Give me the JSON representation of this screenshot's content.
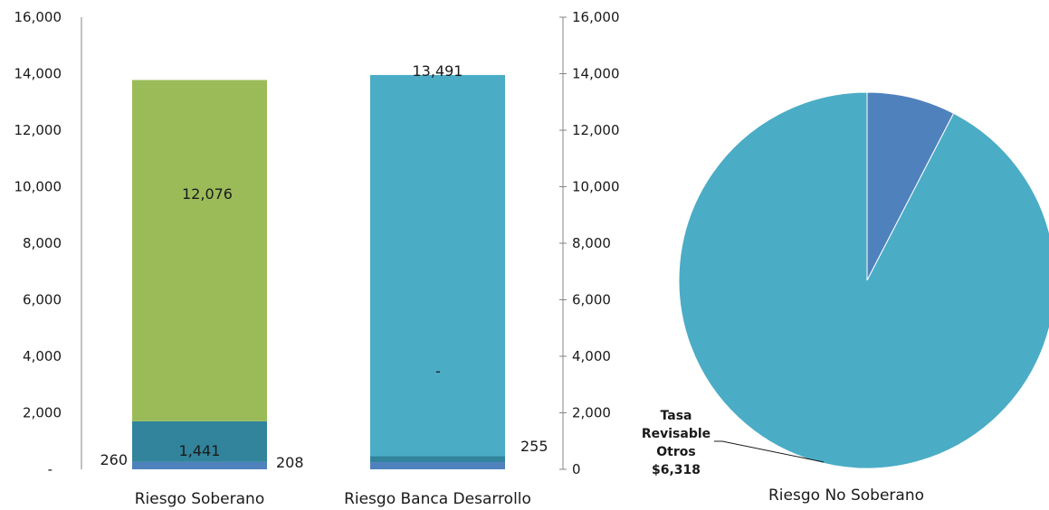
{
  "chart_data": [
    {
      "type": "bar",
      "stacked": true,
      "categories": [
        "Riesgo Soberano",
        "Riesgo Banca Desarrollo"
      ],
      "ylim": [
        0,
        16000
      ],
      "yticks_left": [
        "-",
        "2,000",
        "4,000",
        "6,000",
        "8,000",
        "10,000",
        "12,000",
        "14,000",
        "16,000"
      ],
      "yticks_right": [
        "0",
        "2,000",
        "4,000",
        "6,000",
        "8,000",
        "10,000",
        "12,000",
        "14,000",
        "16,000"
      ],
      "series": [
        {
          "values": [
            260,
            255
          ],
          "labels": [
            "260",
            "255"
          ],
          "color": "#4f81bd"
        },
        {
          "values": [
            1441,
            208
          ],
          "labels": [
            "1,441",
            "208"
          ],
          "color": "#31849b"
        },
        {
          "values": [
            12076,
            0
          ],
          "labels": [
            "12,076",
            "-"
          ],
          "color": "#9bbb59"
        },
        {
          "values": [
            0,
            13491
          ],
          "labels": [
            "",
            "13,491"
          ],
          "color": "#4bacc6"
        }
      ]
    },
    {
      "type": "pie",
      "title": "Riesgo No Soberano",
      "slices": [
        {
          "value": 6318,
          "label": "Tasa Revisable Otros $6,318",
          "label_lines": [
            "Tasa",
            "Revisable",
            "Otros",
            "$6,318"
          ],
          "color": "#4bacc6"
        },
        {
          "value": 520,
          "label": "",
          "color": "#4f81bd"
        }
      ]
    }
  ]
}
